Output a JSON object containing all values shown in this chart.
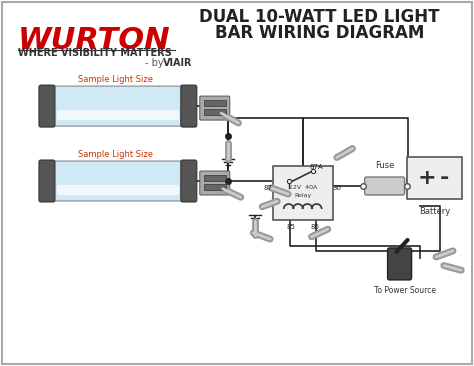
{
  "title_line1": "DUAL 10-WATT LED LIGHT",
  "title_line2": "BAR WIRING DIAGRAM",
  "logo_text": "WURTON",
  "logo_subtext": "WHERE VISIBILITY MATTERS",
  "byline_prefix": "- by ",
  "byline_brand": "VIAIR",
  "label_light1": "Sample Light Size",
  "label_light2": "Sample Light Size",
  "label_relay_line1": "12V  40A",
  "label_relay_line2": "Relay",
  "label_fuse": "Fuse",
  "label_battery": "Battery",
  "label_power": "To Power Source",
  "relay_pins": [
    "87A",
    "87",
    "30",
    "85",
    "86"
  ],
  "bg_color": "#ffffff",
  "logo_color": "#cc0000",
  "title_color": "#222222",
  "wire_color": "#222222",
  "light_body_color": "#d0eaf5",
  "light_end_color": "#444444",
  "label_color": "#cc3300",
  "relay_box_color": "#eeeeee",
  "battery_plus": "+",
  "battery_minus": "-"
}
